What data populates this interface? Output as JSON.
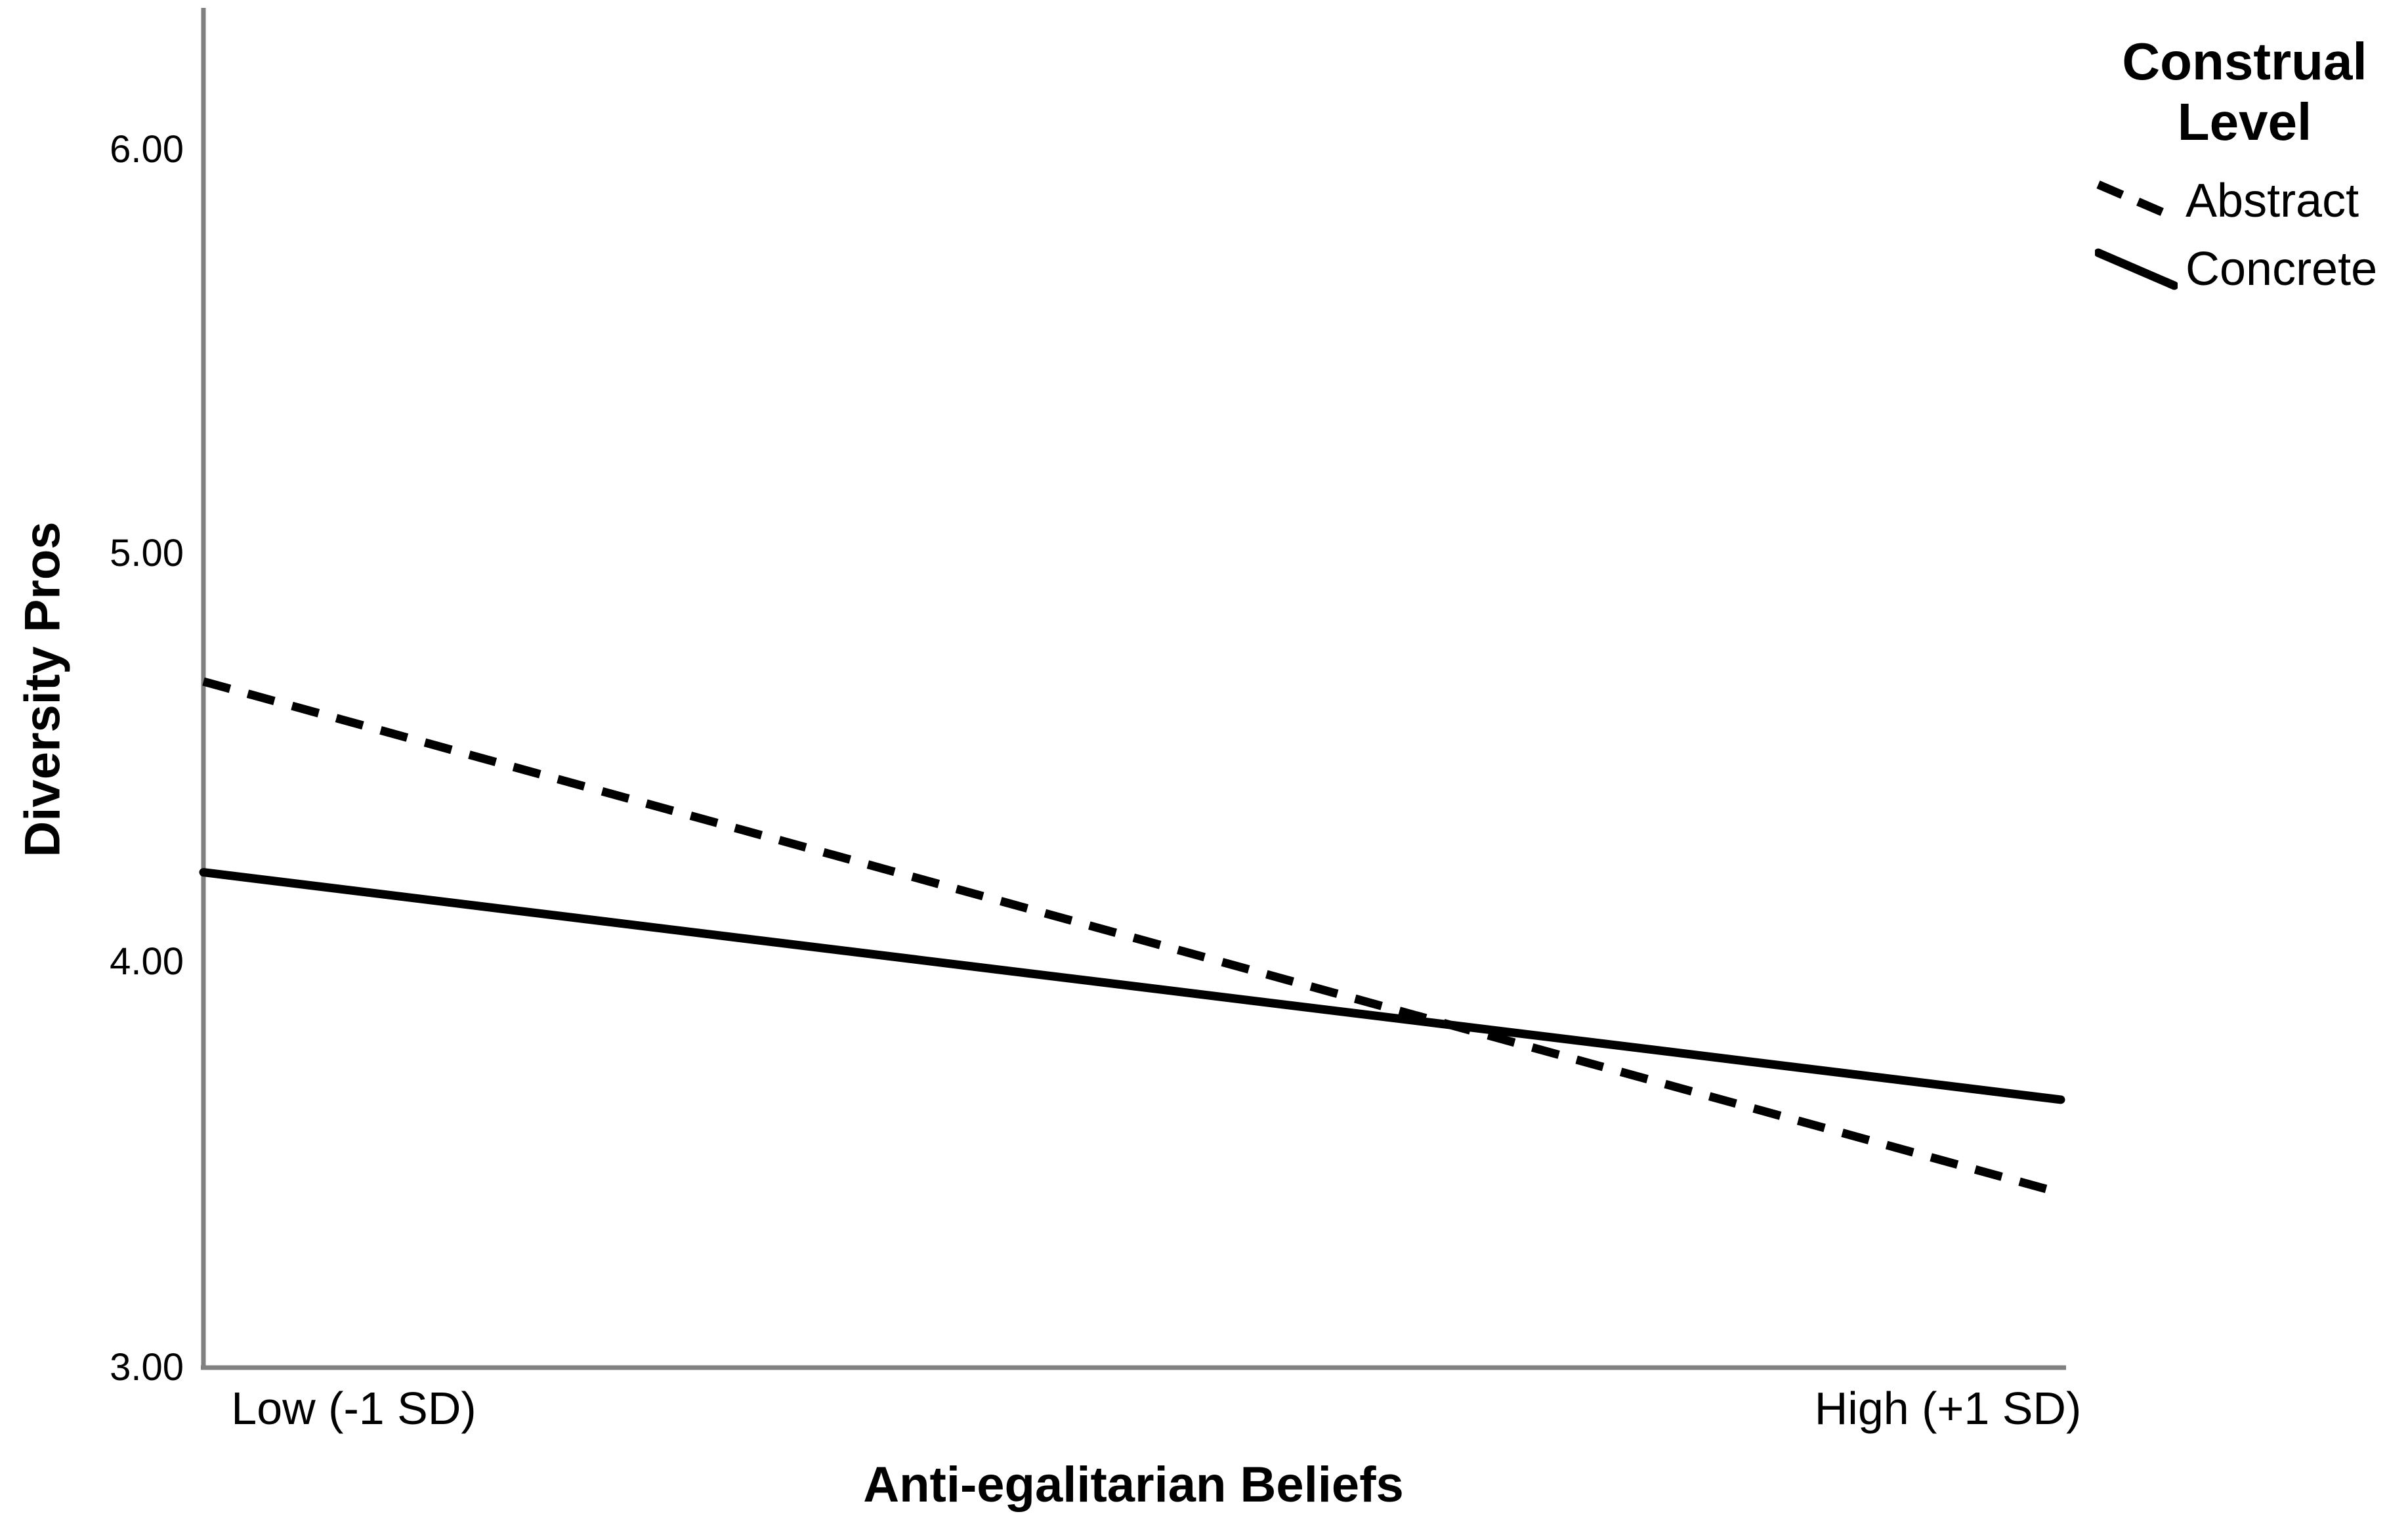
{
  "chart_data": {
    "type": "line",
    "xlabel": "Anti-egalitarian Beliefs",
    "ylabel": "Diversity Pros",
    "x_categories": [
      "Low (-1 SD)",
      "High (+1 SD)"
    ],
    "y_tick_labels": [
      "6.00",
      "5.00",
      "4.00",
      "3.00"
    ],
    "y_tick_values": [
      6.0,
      5.0,
      4.0,
      3.0
    ],
    "ylim": [
      3.0,
      6.35
    ],
    "grid": false,
    "series": [
      {
        "name": "Abstract",
        "style": "dashed",
        "values": [
          4.69,
          3.43
        ]
      },
      {
        "name": "Concrete",
        "style": "solid",
        "values": [
          4.22,
          3.66
        ]
      }
    ],
    "legend": {
      "title": "Construal Level",
      "position": "top-right"
    },
    "colors": {
      "series": "#000000",
      "axis": "#808080",
      "text": "#000000",
      "background": "#ffffff"
    }
  }
}
